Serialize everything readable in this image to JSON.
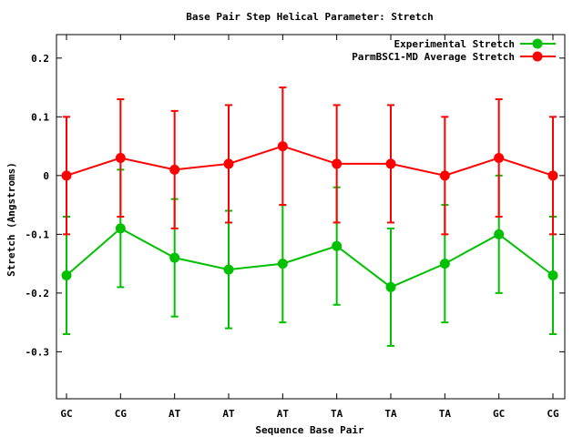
{
  "chart_data": {
    "type": "line",
    "title": "Base Pair Step Helical Parameter: Stretch",
    "xlabel": "Sequence Base Pair",
    "ylabel": "Stretch (Angstroms)",
    "categories": [
      "GC",
      "CG",
      "AT",
      "AT",
      "AT",
      "TA",
      "TA",
      "TA",
      "GC",
      "CG"
    ],
    "ylim": [
      -0.38,
      0.24
    ],
    "yticks": [
      {
        "value": 0.2,
        "label": "0.2"
      },
      {
        "value": 0.1,
        "label": "0.1"
      },
      {
        "value": 0,
        "label": "0"
      },
      {
        "value": -0.1,
        "label": "-0.1"
      },
      {
        "value": -0.2,
        "label": "-0.2"
      },
      {
        "value": -0.3,
        "label": "-0.3"
      }
    ],
    "grid": false,
    "legend_position": "top-right",
    "series": [
      {
        "name": "Experimental Stretch",
        "color": "#00c000",
        "values": [
          -0.17,
          -0.09,
          -0.14,
          -0.16,
          -0.15,
          -0.12,
          -0.19,
          -0.15,
          -0.1,
          -0.17
        ],
        "errors": [
          0.1,
          0.1,
          0.1,
          0.1,
          0.1,
          0.1,
          0.1,
          0.1,
          0.1,
          0.1
        ]
      },
      {
        "name": "ParmBSC1-MD Average Stretch",
        "color": "#ff0000",
        "values": [
          0.0,
          0.03,
          0.01,
          0.02,
          0.05,
          0.02,
          0.02,
          0.0,
          0.03,
          0.0
        ],
        "errors": [
          0.1,
          0.1,
          0.1,
          0.1,
          0.1,
          0.1,
          0.1,
          0.1,
          0.1,
          0.1
        ]
      }
    ]
  }
}
